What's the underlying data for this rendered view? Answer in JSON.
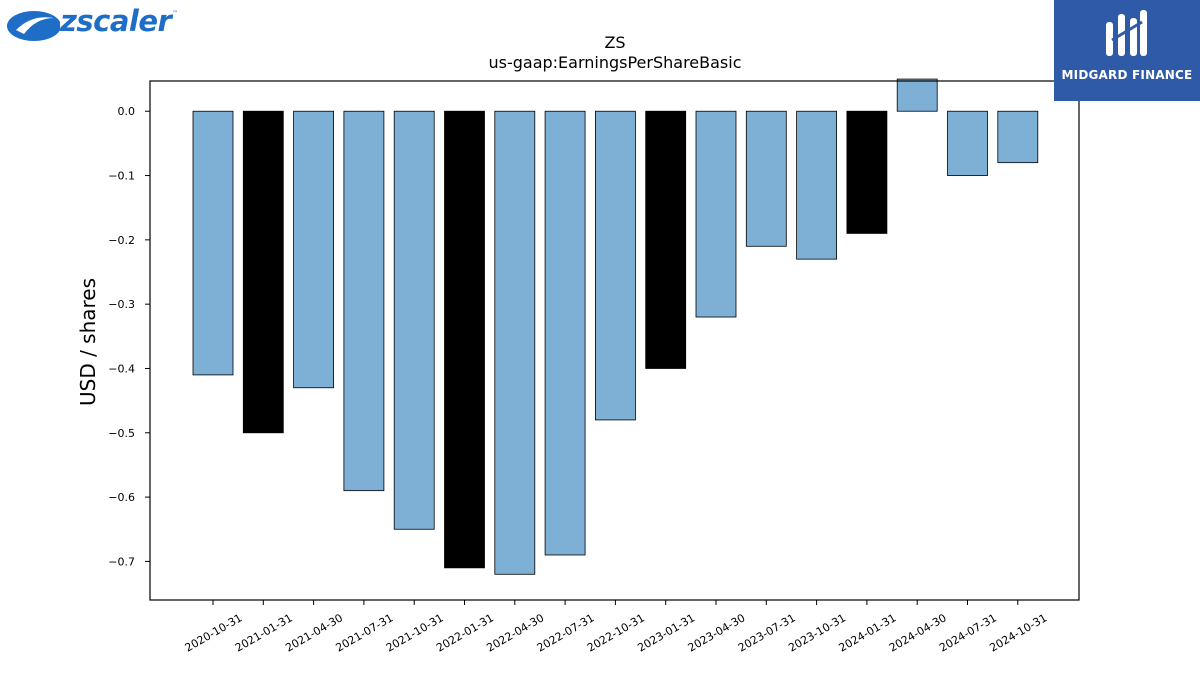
{
  "logos": {
    "left_brand": "zscaler",
    "left_brand_tm": "™",
    "right_brand": "MIDGARD FINANCE",
    "left_color": "#1e6ec8",
    "right_bg": "#2f5aa8"
  },
  "chart_data": {
    "type": "bar",
    "title": "ZS",
    "subtitle": "us-gaap:EarningsPerShareBasic",
    "xlabel": "",
    "ylabel": "USD / shares",
    "ylim": [
      -0.76,
      0.047
    ],
    "yticks": [
      0.0,
      -0.1,
      -0.2,
      -0.3,
      -0.4,
      -0.5,
      -0.6,
      -0.7
    ],
    "ytick_labels": [
      "0.0",
      "−0.1",
      "−0.2",
      "−0.3",
      "−0.4",
      "−0.5",
      "−0.6",
      "−0.7"
    ],
    "grid": false,
    "categories": [
      "2020-10-31",
      "2021-01-31",
      "2021-04-30",
      "2021-07-31",
      "2021-10-31",
      "2022-01-31",
      "2022-04-30",
      "2022-07-31",
      "2022-10-31",
      "2023-01-31",
      "2023-04-30",
      "2023-07-31",
      "2023-10-31",
      "2024-01-31",
      "2024-04-30",
      "2024-07-31",
      "2024-10-31"
    ],
    "values": [
      -0.41,
      -0.5,
      -0.43,
      -0.59,
      -0.65,
      -0.71,
      -0.72,
      -0.69,
      -0.48,
      -0.4,
      -0.32,
      -0.21,
      -0.23,
      -0.19,
      0.05,
      -0.1,
      -0.08
    ],
    "bar_colors": [
      "#7eafd4",
      "#000000",
      "#7eafd4",
      "#7eafd4",
      "#7eafd4",
      "#000000",
      "#7eafd4",
      "#7eafd4",
      "#7eafd4",
      "#000000",
      "#7eafd4",
      "#7eafd4",
      "#7eafd4",
      "#000000",
      "#7eafd4",
      "#7eafd4",
      "#7eafd4"
    ]
  }
}
